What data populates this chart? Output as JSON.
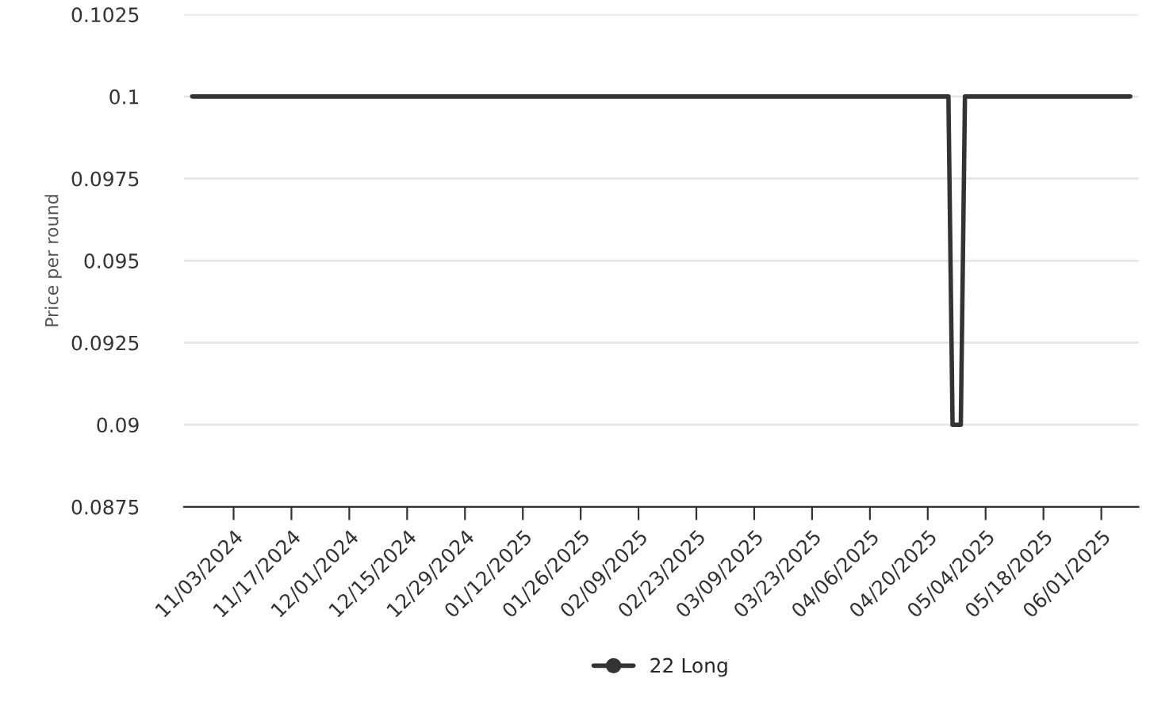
{
  "chart_data": {
    "type": "line",
    "ylabel": "Price per round",
    "x": [
      "2024-10-24",
      "2025-04-25",
      "2025-04-26",
      "2025-04-28",
      "2025-04-29",
      "2025-06-08"
    ],
    "series": [
      {
        "name": "22 Long",
        "color": "#333333",
        "values": [
          0.1,
          0.1,
          0.09,
          0.09,
          0.1,
          0.1
        ]
      }
    ],
    "xlim": [
      "2024-10-22",
      "2025-06-10"
    ],
    "xticks": [
      {
        "value": "2024-11-03",
        "label": "11/03/2024"
      },
      {
        "value": "2024-11-17",
        "label": "11/17/2024"
      },
      {
        "value": "2024-12-01",
        "label": "12/01/2024"
      },
      {
        "value": "2024-12-15",
        "label": "12/15/2024"
      },
      {
        "value": "2024-12-29",
        "label": "12/29/2024"
      },
      {
        "value": "2025-01-12",
        "label": "01/12/2025"
      },
      {
        "value": "2025-01-26",
        "label": "01/26/2025"
      },
      {
        "value": "2025-02-09",
        "label": "02/09/2025"
      },
      {
        "value": "2025-02-23",
        "label": "02/23/2025"
      },
      {
        "value": "2025-03-09",
        "label": "03/09/2025"
      },
      {
        "value": "2025-03-23",
        "label": "03/23/2025"
      },
      {
        "value": "2025-04-06",
        "label": "04/06/2025"
      },
      {
        "value": "2025-04-20",
        "label": "04/20/2025"
      },
      {
        "value": "2025-05-04",
        "label": "05/04/2025"
      },
      {
        "value": "2025-05-18",
        "label": "05/18/2025"
      },
      {
        "value": "2025-06-01",
        "label": "06/01/2025"
      }
    ],
    "ylim": [
      0.0875,
      0.1025
    ],
    "yticks": [
      0.0875,
      0.09,
      0.0925,
      0.095,
      0.0975,
      0.1,
      0.1025
    ],
    "grid": "y",
    "legend": "bottom"
  }
}
